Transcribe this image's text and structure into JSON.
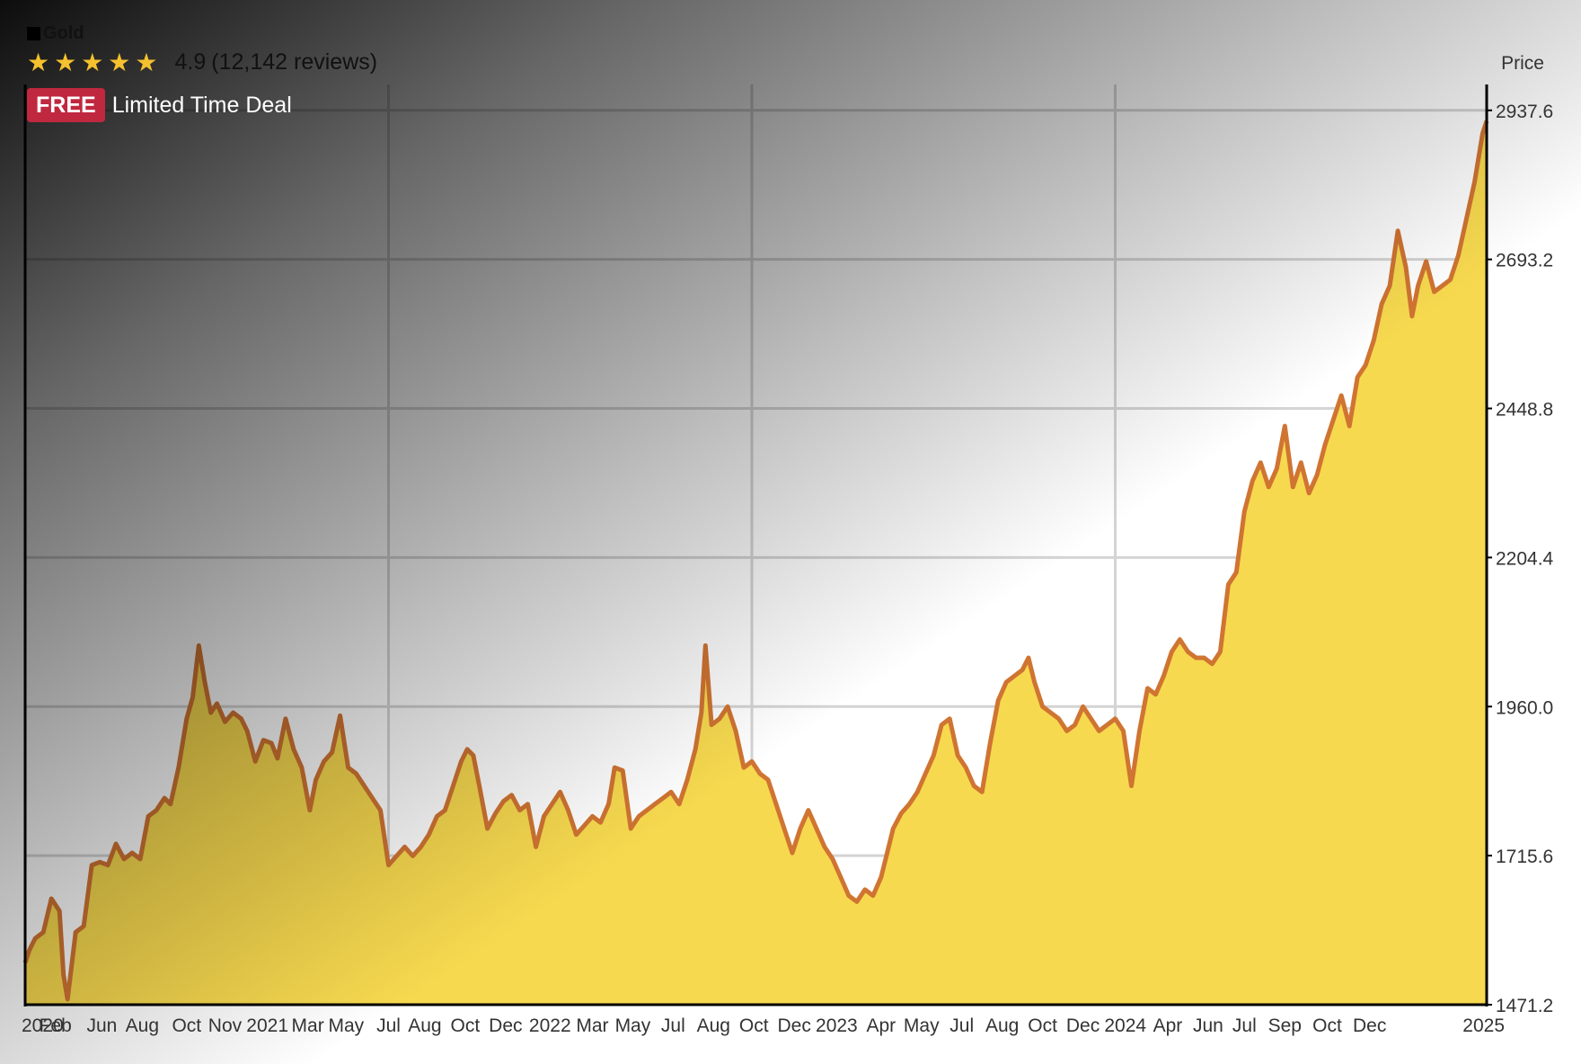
{
  "overlay": {
    "legend_name": "Gold",
    "stars": "★★★★★",
    "rating_value": "4.9",
    "rating_count": "(12,142 reviews)",
    "badge": "FREE",
    "deal": "Limited Time Deal"
  },
  "colors": {
    "line": "#d07432",
    "fill": "#f7d94f",
    "grid": "#d4d4d4",
    "axis": "#000000",
    "badge": "#c0283f",
    "stars": "#f5c12e"
  },
  "icons": {
    "rating": "star-icon",
    "legend": "square-swatch-icon"
  },
  "chart_data": {
    "type": "area",
    "title": "",
    "series": [
      {
        "name": "Gold",
        "points": [
          [
            2020.0,
            1540
          ],
          [
            2020.02,
            1560
          ],
          [
            2020.05,
            1580
          ],
          [
            2020.09,
            1590
          ],
          [
            2020.13,
            1645
          ],
          [
            2020.17,
            1625
          ],
          [
            2020.19,
            1520
          ],
          [
            2020.21,
            1480
          ],
          [
            2020.25,
            1590
          ],
          [
            2020.29,
            1600
          ],
          [
            2020.33,
            1700
          ],
          [
            2020.37,
            1705
          ],
          [
            2020.41,
            1700
          ],
          [
            2020.45,
            1735
          ],
          [
            2020.49,
            1710
          ],
          [
            2020.53,
            1720
          ],
          [
            2020.57,
            1710
          ],
          [
            2020.61,
            1780
          ],
          [
            2020.65,
            1790
          ],
          [
            2020.69,
            1810
          ],
          [
            2020.72,
            1800
          ],
          [
            2020.76,
            1860
          ],
          [
            2020.8,
            1940
          ],
          [
            2020.83,
            1975
          ],
          [
            2020.86,
            2060
          ],
          [
            2020.89,
            2000
          ],
          [
            2020.92,
            1950
          ],
          [
            2020.95,
            1965
          ],
          [
            2020.99,
            1935
          ],
          [
            2021.03,
            1950
          ],
          [
            2021.07,
            1940
          ],
          [
            2021.1,
            1920
          ],
          [
            2021.14,
            1870
          ],
          [
            2021.18,
            1905
          ],
          [
            2021.22,
            1900
          ],
          [
            2021.25,
            1875
          ],
          [
            2021.29,
            1940
          ],
          [
            2021.33,
            1890
          ],
          [
            2021.37,
            1860
          ],
          [
            2021.41,
            1790
          ],
          [
            2021.44,
            1840
          ],
          [
            2021.48,
            1870
          ],
          [
            2021.52,
            1885
          ],
          [
            2021.56,
            1945
          ],
          [
            2021.6,
            1860
          ],
          [
            2021.64,
            1850
          ],
          [
            2021.68,
            1830
          ],
          [
            2021.72,
            1810
          ],
          [
            2021.76,
            1790
          ],
          [
            2021.8,
            1700
          ],
          [
            2021.84,
            1715
          ],
          [
            2021.88,
            1730
          ],
          [
            2021.92,
            1715
          ],
          [
            2021.96,
            1730
          ],
          [
            2022.0,
            1750
          ],
          [
            2022.04,
            1780
          ],
          [
            2022.08,
            1790
          ],
          [
            2022.12,
            1830
          ],
          [
            2022.16,
            1870
          ],
          [
            2022.19,
            1890
          ],
          [
            2022.22,
            1880
          ],
          [
            2022.25,
            1830
          ],
          [
            2022.29,
            1760
          ],
          [
            2022.33,
            1785
          ],
          [
            2022.37,
            1805
          ],
          [
            2022.41,
            1815
          ],
          [
            2022.45,
            1790
          ],
          [
            2022.49,
            1800
          ],
          [
            2022.53,
            1730
          ],
          [
            2022.57,
            1780
          ],
          [
            2022.61,
            1800
          ],
          [
            2022.65,
            1820
          ],
          [
            2022.69,
            1790
          ],
          [
            2022.73,
            1750
          ],
          [
            2022.77,
            1765
          ],
          [
            2022.81,
            1780
          ],
          [
            2022.85,
            1770
          ],
          [
            2022.89,
            1800
          ],
          [
            2022.92,
            1860
          ],
          [
            2022.96,
            1855
          ],
          [
            2023.0,
            1760
          ],
          [
            2023.04,
            1780
          ],
          [
            2023.08,
            1790
          ],
          [
            2023.12,
            1800
          ],
          [
            2023.16,
            1810
          ],
          [
            2023.2,
            1820
          ],
          [
            2023.24,
            1800
          ],
          [
            2023.28,
            1840
          ],
          [
            2023.32,
            1890
          ],
          [
            2023.35,
            1950
          ],
          [
            2023.37,
            2060
          ],
          [
            2023.4,
            1930
          ],
          [
            2023.44,
            1940
          ],
          [
            2023.48,
            1960
          ],
          [
            2023.52,
            1920
          ],
          [
            2023.56,
            1860
          ],
          [
            2023.6,
            1870
          ],
          [
            2023.64,
            1850
          ],
          [
            2023.68,
            1840
          ],
          [
            2023.72,
            1800
          ],
          [
            2023.76,
            1760
          ],
          [
            2023.8,
            1720
          ],
          [
            2023.84,
            1760
          ],
          [
            2023.88,
            1790
          ],
          [
            2023.92,
            1760
          ],
          [
            2023.96,
            1730
          ],
          [
            2024.0,
            1710
          ],
          [
            2024.04,
            1680
          ],
          [
            2024.08,
            1650
          ],
          [
            2024.12,
            1640
          ],
          [
            2024.16,
            1660
          ],
          [
            2024.2,
            1650
          ],
          [
            2024.24,
            1680
          ],
          [
            2024.27,
            1720
          ],
          [
            2024.3,
            1760
          ],
          [
            2024.34,
            1785
          ],
          [
            2024.38,
            1800
          ],
          [
            2024.42,
            1820
          ],
          [
            2024.46,
            1850
          ],
          [
            2024.5,
            1880
          ],
          [
            2024.54,
            1930
          ],
          [
            2024.58,
            1940
          ],
          [
            2024.62,
            1880
          ],
          [
            2024.66,
            1860
          ],
          [
            2024.7,
            1830
          ],
          [
            2024.74,
            1820
          ],
          [
            2024.78,
            1900
          ],
          [
            2024.82,
            1970
          ],
          [
            2024.86,
            2000
          ],
          [
            2024.9,
            2010
          ],
          [
            2024.94,
            2020
          ],
          [
            2024.97,
            2040
          ],
          [
            2025.0,
            2000
          ],
          [
            2025.04,
            1960
          ],
          [
            2025.08,
            1950
          ],
          [
            2025.12,
            1940
          ],
          [
            2025.16,
            1920
          ],
          [
            2025.2,
            1930
          ],
          [
            2025.24,
            1960
          ],
          [
            2025.28,
            1940
          ],
          [
            2025.32,
            1920
          ],
          [
            2025.36,
            1930
          ],
          [
            2025.4,
            1940
          ],
          [
            2025.44,
            1920
          ],
          [
            2025.48,
            1830
          ],
          [
            2025.52,
            1920
          ],
          [
            2025.56,
            1990
          ],
          [
            2025.6,
            1980
          ],
          [
            2025.64,
            2010
          ],
          [
            2025.68,
            2050
          ],
          [
            2025.72,
            2070
          ],
          [
            2025.76,
            2050
          ],
          [
            2025.8,
            2040
          ],
          [
            2025.84,
            2040
          ],
          [
            2025.88,
            2030
          ],
          [
            2025.92,
            2050
          ],
          [
            2025.96,
            2160
          ],
          [
            2026.0,
            2180
          ],
          [
            2026.04,
            2280
          ],
          [
            2026.08,
            2330
          ],
          [
            2026.12,
            2360
          ],
          [
            2026.16,
            2320
          ],
          [
            2026.2,
            2350
          ],
          [
            2026.24,
            2420
          ],
          [
            2026.28,
            2320
          ],
          [
            2026.32,
            2360
          ],
          [
            2026.36,
            2310
          ],
          [
            2026.4,
            2340
          ],
          [
            2026.44,
            2390
          ],
          [
            2026.48,
            2430
          ],
          [
            2026.52,
            2470
          ],
          [
            2026.56,
            2420
          ],
          [
            2026.6,
            2500
          ],
          [
            2026.64,
            2520
          ],
          [
            2026.68,
            2560
          ],
          [
            2026.72,
            2620
          ],
          [
            2026.76,
            2650
          ],
          [
            2026.8,
            2740
          ],
          [
            2026.84,
            2680
          ],
          [
            2026.87,
            2600
          ],
          [
            2026.9,
            2650
          ],
          [
            2026.94,
            2690
          ],
          [
            2026.98,
            2640
          ],
          [
            2027.02,
            2650
          ],
          [
            2027.06,
            2660
          ],
          [
            2027.1,
            2700
          ],
          [
            2027.14,
            2760
          ],
          [
            2027.18,
            2820
          ],
          [
            2027.22,
            2900
          ],
          [
            2027.24,
            2920
          ]
        ]
      }
    ],
    "x_range": [
      2020,
      2027.24
    ],
    "x_ticks": [
      {
        "label": "2020",
        "x": 2020.0
      },
      {
        "label": "Feb",
        "x": 2020.15
      },
      {
        "label": "Jun",
        "x": 2020.38
      },
      {
        "label": "Aug",
        "x": 2020.58
      },
      {
        "label": "Oct",
        "x": 2020.8
      },
      {
        "label": "Nov",
        "x": 2020.99
      },
      {
        "label": "2021",
        "x": 2021.2
      },
      {
        "label": "Mar",
        "x": 2021.4
      },
      {
        "label": "May",
        "x": 2021.59
      },
      {
        "label": "Jul",
        "x": 2021.8
      },
      {
        "label": "Aug",
        "x": 2021.98
      },
      {
        "label": "Oct",
        "x": 2022.18
      },
      {
        "label": "Dec",
        "x": 2022.38
      },
      {
        "label": "2022",
        "x": 2022.6
      },
      {
        "label": "Mar",
        "x": 2022.81
      },
      {
        "label": "May",
        "x": 2023.01
      },
      {
        "label": "Jul",
        "x": 2023.21
      },
      {
        "label": "Aug",
        "x": 2023.41
      },
      {
        "label": "Oct",
        "x": 2023.61
      },
      {
        "label": "Dec",
        "x": 2023.81
      },
      {
        "label": "2023",
        "x": 2024.02
      },
      {
        "label": "Apr",
        "x": 2024.24
      },
      {
        "label": "May",
        "x": 2024.44
      },
      {
        "label": "Jul",
        "x": 2024.64
      },
      {
        "label": "Aug",
        "x": 2024.84
      },
      {
        "label": "Oct",
        "x": 2025.04
      },
      {
        "label": "Dec",
        "x": 2025.24
      },
      {
        "label": "2024",
        "x": 2025.45
      },
      {
        "label": "Apr",
        "x": 2025.66
      },
      {
        "label": "Jun",
        "x": 2025.86
      },
      {
        "label": "Jul",
        "x": 2026.04
      },
      {
        "label": "Sep",
        "x": 2026.24
      },
      {
        "label": "Oct",
        "x": 2026.45
      },
      {
        "label": "Dec",
        "x": 2026.66
      },
      {
        "label": "2025",
        "x": 2026.86
      }
    ],
    "x_gridlines": [
      2021.8,
      2023.6,
      2025.4
    ],
    "ylabel": "Price",
    "ylim": [
      1471.2,
      2980
    ],
    "y_ticks": [
      1471.2,
      1715.6,
      1960.0,
      2204.4,
      2448.8,
      2693.2,
      2937.6
    ],
    "y_tick_labels": [
      "1471.2",
      "1715.6",
      "1960.0",
      "2204.4",
      "2448.8",
      "2693.2",
      "2937.6"
    ],
    "grid": true,
    "legend": "top-left"
  }
}
